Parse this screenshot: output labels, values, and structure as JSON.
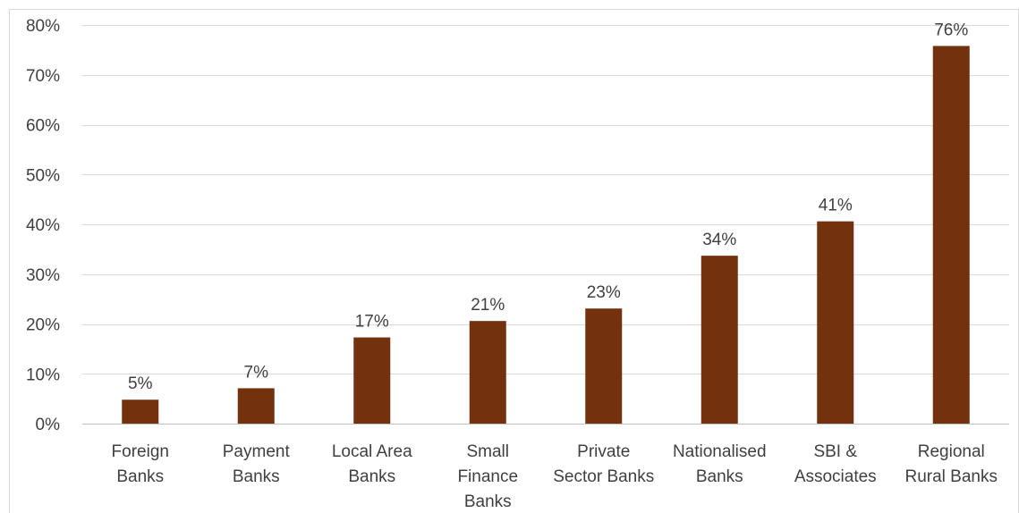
{
  "chart_data": {
    "type": "bar",
    "title": "",
    "xlabel": "",
    "ylabel": "",
    "categories": [
      [
        "Foreign",
        "Banks"
      ],
      [
        "Payment",
        "Banks"
      ],
      [
        "Local Area",
        "Banks"
      ],
      [
        "Small",
        "Finance",
        "Banks"
      ],
      [
        "Private",
        "Sector Banks"
      ],
      [
        "Nationalised",
        "Banks"
      ],
      [
        "SBI &",
        "Associates"
      ],
      [
        "Regional",
        "Rural Banks"
      ]
    ],
    "series": [
      {
        "values": [
          0.048,
          0.071,
          0.173,
          0.206,
          0.231,
          0.337,
          0.406,
          0.758
        ],
        "data_labels": [
          "5%",
          "7%",
          "17%",
          "21%",
          "23%",
          "34%",
          "41%",
          "76%"
        ],
        "color": "#73310e"
      }
    ],
    "ylim": [
      0,
      0.8
    ],
    "yticks": [
      0,
      0.1,
      0.2,
      0.3,
      0.4,
      0.5,
      0.6,
      0.7,
      0.8
    ],
    "ytick_labels": [
      "0%",
      "10%",
      "20%",
      "30%",
      "40%",
      "50%",
      "60%",
      "70%",
      "80%"
    ],
    "grid": true,
    "gridline_color": "#d9d9d9",
    "legend": "none"
  }
}
